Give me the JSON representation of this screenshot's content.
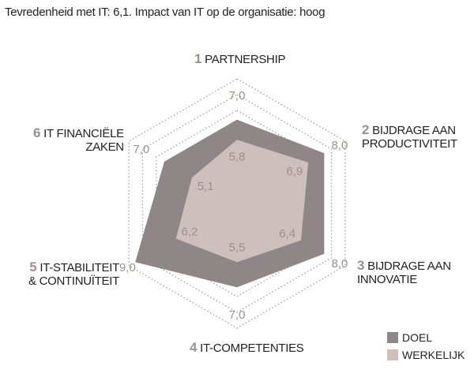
{
  "title": "Tevredenheid met IT: 6,1.  Impact van IT op de organisatie: hoog",
  "chart_data": {
    "type": "radar",
    "axes": [
      {
        "num": "1",
        "label": [
          "PARTNERSHIP"
        ]
      },
      {
        "num": "2",
        "label": [
          "BIJDRAGE AAN",
          "PRODUCTIVITEIT"
        ]
      },
      {
        "num": "3",
        "label": [
          "BIJDRAGE AAN",
          "INNOVATIE"
        ]
      },
      {
        "num": "4",
        "label": [
          "IT-COMPETENTIES"
        ]
      },
      {
        "num": "5",
        "label": [
          "IT-STABILITEIT",
          "& CONTINUÏTEIT"
        ]
      },
      {
        "num": "6",
        "label": [
          "IT FINANCIËLE",
          "ZAKEN"
        ]
      }
    ],
    "series": [
      {
        "name": "DOEL",
        "values": [
          7.0,
          8.0,
          8.0,
          7.0,
          9.0,
          7.0
        ],
        "labels": [
          "7,0",
          "8,0",
          "8,0",
          "7,0",
          "9,0",
          "7,0"
        ],
        "color": "#8f8787"
      },
      {
        "name": "WERKELIJK",
        "values": [
          5.8,
          6.9,
          6.4,
          5.5,
          6.2,
          5.1
        ],
        "labels": [
          "5,8",
          "6,9",
          "6,4",
          "5,5",
          "6,2",
          "5,1"
        ],
        "color": "#cdbfbb"
      }
    ],
    "grid": "dotted hexagons",
    "legend": "bottom-right"
  }
}
